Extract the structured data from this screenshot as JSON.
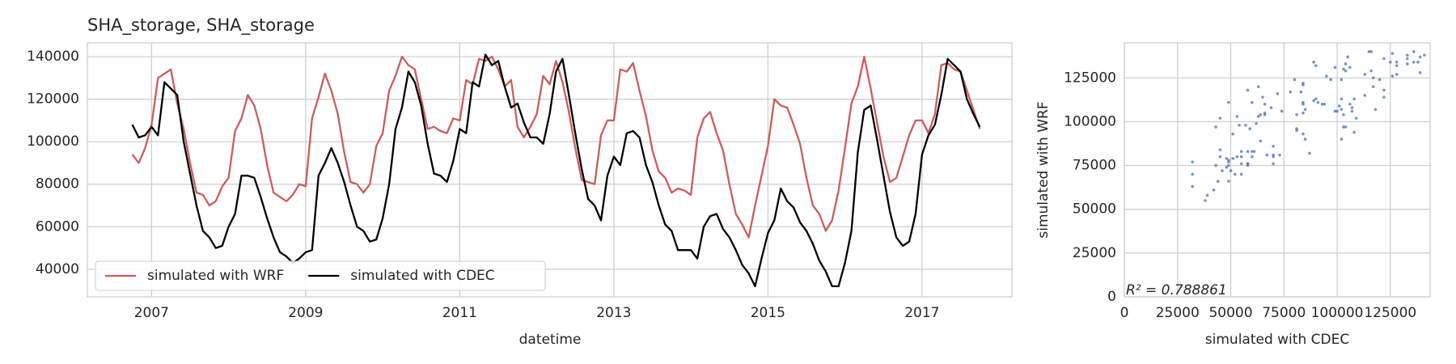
{
  "chart_data": [
    {
      "type": "line",
      "title": "SHA_storage, SHA_storage",
      "xlabel": "datetime",
      "x": [
        "2006-10",
        "2006-11",
        "2006-12",
        "2007-01",
        "2007-02",
        "2007-03",
        "2007-04",
        "2007-05",
        "2007-06",
        "2007-07",
        "2007-08",
        "2007-09",
        "2007-10",
        "2007-11",
        "2007-12",
        "2008-01",
        "2008-02",
        "2008-03",
        "2008-04",
        "2008-05",
        "2008-06",
        "2008-07",
        "2008-08",
        "2008-09",
        "2008-10",
        "2008-11",
        "2008-12",
        "2009-01",
        "2009-02",
        "2009-03",
        "2009-04",
        "2009-05",
        "2009-06",
        "2009-07",
        "2009-08",
        "2009-09",
        "2009-10",
        "2009-11",
        "2009-12",
        "2010-01",
        "2010-02",
        "2010-03",
        "2010-04",
        "2010-05",
        "2010-06",
        "2010-07",
        "2010-08",
        "2010-09",
        "2010-10",
        "2010-11",
        "2010-12",
        "2011-01",
        "2011-02",
        "2011-03",
        "2011-04",
        "2011-05",
        "2011-06",
        "2011-07",
        "2011-08",
        "2011-09",
        "2011-10",
        "2011-11",
        "2011-12",
        "2012-01",
        "2012-02",
        "2012-03",
        "2012-04",
        "2012-05",
        "2012-06",
        "2012-07",
        "2012-08",
        "2012-09",
        "2012-10",
        "2012-11",
        "2012-12",
        "2013-01",
        "2013-02",
        "2013-03",
        "2013-04",
        "2013-05",
        "2013-06",
        "2013-07",
        "2013-08",
        "2013-09",
        "2013-10",
        "2013-11",
        "2013-12",
        "2014-01",
        "2014-02",
        "2014-03",
        "2014-04",
        "2014-05",
        "2014-06",
        "2014-07",
        "2014-08",
        "2014-09",
        "2014-10",
        "2014-11",
        "2014-12",
        "2015-01",
        "2015-02",
        "2015-03",
        "2015-04",
        "2015-05",
        "2015-06",
        "2015-07",
        "2015-08",
        "2015-09",
        "2015-10",
        "2015-11",
        "2015-12",
        "2016-01",
        "2016-02",
        "2016-03",
        "2016-04",
        "2016-05",
        "2016-06",
        "2016-07",
        "2016-08",
        "2016-09",
        "2016-10",
        "2016-11",
        "2016-12",
        "2017-01",
        "2017-02",
        "2017-03",
        "2017-04",
        "2017-05",
        "2017-06",
        "2017-07",
        "2017-08",
        "2017-09",
        "2017-10"
      ],
      "series": [
        {
          "name": "simulated with WRF",
          "color": "#cd5c5c",
          "values": [
            94000,
            90000,
            97000,
            108000,
            130000,
            132000,
            134000,
            118000,
            106000,
            90000,
            76000,
            75000,
            70000,
            72000,
            79000,
            83000,
            105000,
            111000,
            122000,
            117000,
            106000,
            89000,
            76000,
            74000,
            72000,
            75000,
            80000,
            79000,
            111000,
            121000,
            132000,
            124000,
            113000,
            95000,
            81000,
            80000,
            76000,
            80000,
            98000,
            104000,
            124000,
            131000,
            140000,
            136000,
            134000,
            120000,
            106000,
            107000,
            105000,
            104000,
            111000,
            110000,
            129000,
            127000,
            139000,
            138000,
            140000,
            134000,
            126000,
            129000,
            107000,
            102000,
            107000,
            113000,
            131000,
            127000,
            138000,
            128000,
            114000,
            97000,
            82000,
            81000,
            80000,
            103000,
            110000,
            110000,
            134000,
            133000,
            137000,
            124000,
            112000,
            96000,
            86000,
            83000,
            76000,
            78000,
            77000,
            75000,
            102000,
            111000,
            114000,
            104000,
            96000,
            80000,
            66000,
            61000,
            55000,
            70000,
            84000,
            98000,
            120000,
            117000,
            116000,
            108000,
            99000,
            83000,
            70000,
            66000,
            58000,
            63000,
            77000,
            97000,
            118000,
            126000,
            140000,
            125000,
            109000,
            93000,
            81000,
            83000,
            93000,
            103000,
            110000,
            110000,
            104000,
            113000,
            136000,
            137000,
            134000,
            133000,
            124000,
            115000,
            106000
          ]
        },
        {
          "name": "simulated with CDEC",
          "color": "#000000",
          "values": [
            108000,
            102000,
            103000,
            107000,
            103000,
            128000,
            125000,
            122000,
            100000,
            85000,
            70000,
            58000,
            55000,
            50000,
            51000,
            60000,
            66000,
            84000,
            84000,
            83000,
            74000,
            64000,
            55000,
            48000,
            46000,
            43000,
            45000,
            48000,
            49000,
            84000,
            90000,
            97000,
            90000,
            81000,
            70000,
            60000,
            58000,
            53000,
            54000,
            64000,
            80000,
            106000,
            116000,
            133000,
            128000,
            117000,
            99000,
            85000,
            84000,
            81000,
            91000,
            106000,
            104000,
            128000,
            126000,
            141000,
            136000,
            138000,
            126000,
            116000,
            118000,
            109000,
            102000,
            102000,
            99000,
            113000,
            133000,
            139000,
            122000,
            104000,
            87000,
            73000,
            70000,
            63000,
            84000,
            93000,
            89000,
            104000,
            105000,
            102000,
            89000,
            81000,
            70000,
            61000,
            58000,
            49000,
            49000,
            49000,
            45000,
            60000,
            65000,
            66000,
            59000,
            55000,
            49000,
            42000,
            38000,
            32000,
            45000,
            57000,
            63000,
            78000,
            72000,
            69000,
            62000,
            58000,
            52000,
            44000,
            39000,
            32000,
            32000,
            43000,
            58000,
            95000,
            115000,
            117000,
            101000,
            84000,
            67000,
            55000,
            51000,
            53000,
            66000,
            94000,
            103000,
            108000,
            122000,
            139000,
            136000,
            133000,
            120000,
            113000,
            107000
          ]
        }
      ],
      "xlim": [
        "2006-03",
        "2018-03"
      ],
      "xticks": [
        2007,
        2009,
        2011,
        2013,
        2015,
        2017
      ],
      "ylim": [
        27000,
        146500
      ],
      "yticks": [
        40000,
        60000,
        80000,
        100000,
        120000,
        140000
      ],
      "grid": true,
      "legend": "lower left"
    },
    {
      "type": "scatter",
      "xlabel": "simulated with CDEC",
      "ylabel": "simulated with WRF",
      "color": "#4c72b0",
      "annotation": "R² = 0.788861",
      "x": [
        108000,
        102000,
        103000,
        107000,
        103000,
        128000,
        125000,
        122000,
        100000,
        85000,
        70000,
        58000,
        55000,
        50000,
        51000,
        60000,
        66000,
        84000,
        84000,
        83000,
        74000,
        64000,
        55000,
        48000,
        46000,
        43000,
        45000,
        48000,
        49000,
        84000,
        90000,
        97000,
        90000,
        81000,
        70000,
        60000,
        58000,
        53000,
        54000,
        64000,
        80000,
        106000,
        116000,
        133000,
        128000,
        117000,
        99000,
        85000,
        84000,
        81000,
        91000,
        106000,
        104000,
        128000,
        126000,
        141000,
        136000,
        138000,
        126000,
        116000,
        118000,
        109000,
        102000,
        102000,
        99000,
        113000,
        133000,
        139000,
        122000,
        104000,
        87000,
        73000,
        70000,
        63000,
        84000,
        93000,
        89000,
        104000,
        105000,
        102000,
        89000,
        81000,
        70000,
        61000,
        58000,
        49000,
        49000,
        49000,
        45000,
        60000,
        65000,
        66000,
        59000,
        55000,
        49000,
        42000,
        38000,
        32000,
        45000,
        57000,
        63000,
        78000,
        72000,
        69000,
        62000,
        58000,
        52000,
        44000,
        39000,
        32000,
        32000,
        43000,
        58000,
        95000,
        115000,
        117000,
        101000,
        84000,
        67000,
        55000,
        51000,
        53000,
        66000,
        94000,
        103000,
        108000,
        122000,
        139000,
        136000,
        133000,
        120000,
        113000,
        107000
      ],
      "y": [
        94000,
        90000,
        97000,
        108000,
        130000,
        132000,
        134000,
        118000,
        106000,
        90000,
        76000,
        75000,
        70000,
        72000,
        79000,
        83000,
        105000,
        111000,
        122000,
        117000,
        106000,
        89000,
        76000,
        74000,
        72000,
        75000,
        80000,
        79000,
        111000,
        121000,
        132000,
        124000,
        113000,
        95000,
        81000,
        80000,
        76000,
        80000,
        98000,
        104000,
        124000,
        131000,
        140000,
        136000,
        134000,
        120000,
        106000,
        107000,
        105000,
        104000,
        111000,
        110000,
        129000,
        127000,
        139000,
        138000,
        140000,
        134000,
        126000,
        129000,
        107000,
        102000,
        107000,
        113000,
        131000,
        127000,
        138000,
        128000,
        114000,
        97000,
        82000,
        81000,
        80000,
        103000,
        110000,
        110000,
        134000,
        133000,
        137000,
        124000,
        112000,
        96000,
        86000,
        83000,
        76000,
        78000,
        77000,
        75000,
        102000,
        111000,
        114000,
        104000,
        96000,
        80000,
        66000,
        61000,
        55000,
        70000,
        84000,
        98000,
        120000,
        117000,
        116000,
        108000,
        99000,
        83000,
        70000,
        66000,
        58000,
        63000,
        77000,
        97000,
        118000,
        126000,
        140000,
        125000,
        109000,
        93000,
        81000,
        83000,
        93000,
        103000,
        110000,
        110000,
        104000,
        113000,
        136000,
        137000,
        134000,
        133000,
        124000,
        115000,
        106000
      ],
      "xlim": [
        0,
        143700
      ],
      "xticks": [
        0,
        25000,
        50000,
        75000,
        100000,
        125000
      ],
      "ylim": [
        0,
        145000
      ],
      "yticks": [
        0,
        25000,
        50000,
        75000,
        100000,
        125000
      ],
      "grid": true
    }
  ]
}
